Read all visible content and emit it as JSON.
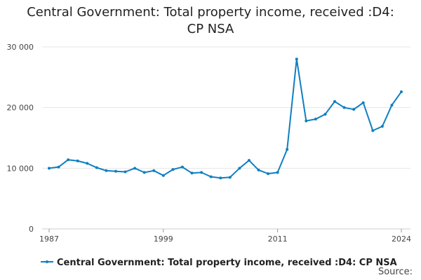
{
  "chart_data": {
    "type": "line",
    "title_lines": [
      "Central Government: Total property income, received :D4:",
      "CP NSA"
    ],
    "xlabel": "",
    "ylabel": "",
    "xlim": [
      1987,
      2024
    ],
    "ylim": [
      0,
      30000
    ],
    "x_ticks": [
      "1987",
      "1999",
      "2011",
      "2024"
    ],
    "y_ticks": [
      "0",
      "10 000",
      "20 000",
      "30 000"
    ],
    "grid": true,
    "legend_position": "bottom",
    "series": [
      {
        "name": "Central Government: Total property income, received :D4: CP NSA",
        "color": "#0f7fc0",
        "x": [
          1987,
          1988,
          1989,
          1990,
          1991,
          1992,
          1993,
          1994,
          1995,
          1996,
          1997,
          1998,
          1999,
          2000,
          2001,
          2002,
          2003,
          2004,
          2005,
          2006,
          2007,
          2008,
          2009,
          2010,
          2011,
          2012,
          2013,
          2014,
          2015,
          2016,
          2017,
          2018,
          2019,
          2020,
          2021,
          2022,
          2023,
          2024
        ],
        "values": [
          10000,
          10200,
          11400,
          11200,
          10800,
          10100,
          9600,
          9500,
          9400,
          10000,
          9300,
          9600,
          8800,
          9800,
          10200,
          9200,
          9300,
          8600,
          8400,
          8500,
          10000,
          11300,
          9700,
          9100,
          9300,
          13100,
          28000,
          17800,
          18100,
          18900,
          21000,
          20000,
          19700,
          20800,
          16200,
          16900,
          20400,
          22600
        ]
      }
    ],
    "source_label": "Source:"
  }
}
